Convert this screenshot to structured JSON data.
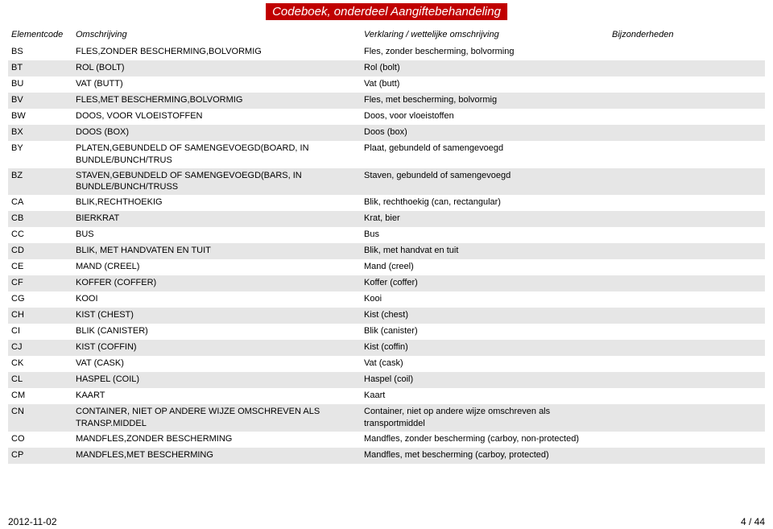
{
  "title": "Codeboek, onderdeel Aangiftebehandeling",
  "headers": {
    "code": "Elementcode",
    "desc": "Omschrijving",
    "expl": "Verklaring / wettelijke omschrijving",
    "notes": "Bijzonderheden"
  },
  "rows": [
    {
      "code": "BS",
      "desc": "FLES,ZONDER BESCHERMING,BOLVORMIG",
      "expl": "Fles, zonder bescherming, bolvorming",
      "stripe": false
    },
    {
      "code": "BT",
      "desc": "ROL (BOLT)",
      "expl": "Rol (bolt)",
      "stripe": true
    },
    {
      "code": "BU",
      "desc": "VAT (BUTT)",
      "expl": "Vat (butt)",
      "stripe": false
    },
    {
      "code": "BV",
      "desc": "FLES,MET BESCHERMING,BOLVORMIG",
      "expl": "Fles, met bescherming, bolvormig",
      "stripe": true
    },
    {
      "code": "BW",
      "desc": "DOOS, VOOR VLOEISTOFFEN",
      "expl": "Doos, voor vloeistoffen",
      "stripe": false
    },
    {
      "code": "BX",
      "desc": "DOOS (BOX)",
      "expl": "Doos (box)",
      "stripe": true
    },
    {
      "code": "BY",
      "desc": "PLATEN,GEBUNDELD OF SAMENGEVOEGD(BOARD, IN BUNDLE/BUNCH/TRUS",
      "expl": "Plaat, gebundeld of samengevoegd",
      "stripe": false
    },
    {
      "code": "BZ",
      "desc": "STAVEN,GEBUNDELD OF SAMENGEVOEGD(BARS, IN BUNDLE/BUNCH/TRUSS",
      "expl": "Staven, gebundeld of samengevoegd",
      "stripe": true
    },
    {
      "code": "CA",
      "desc": "BLIK,RECHTHOEKIG",
      "expl": "Blik, rechthoekig (can, rectangular)",
      "stripe": false
    },
    {
      "code": "CB",
      "desc": "BIERKRAT",
      "expl": "Krat, bier",
      "stripe": true
    },
    {
      "code": "CC",
      "desc": "BUS",
      "expl": "Bus",
      "stripe": false
    },
    {
      "code": "CD",
      "desc": "BLIK, MET HANDVATEN EN TUIT",
      "expl": "Blik, met handvat en tuit",
      "stripe": true
    },
    {
      "code": "CE",
      "desc": "MAND (CREEL)",
      "expl": "Mand (creel)",
      "stripe": false
    },
    {
      "code": "CF",
      "desc": "KOFFER (COFFER)",
      "expl": "Koffer (coffer)",
      "stripe": true
    },
    {
      "code": "CG",
      "desc": "KOOI",
      "expl": "Kooi",
      "stripe": false
    },
    {
      "code": "CH",
      "desc": "KIST (CHEST)",
      "expl": "Kist (chest)",
      "stripe": true
    },
    {
      "code": "CI",
      "desc": "BLIK (CANISTER)",
      "expl": "Blik (canister)",
      "stripe": false
    },
    {
      "code": "CJ",
      "desc": "KIST (COFFIN)",
      "expl": "Kist (coffin)",
      "stripe": true
    },
    {
      "code": "CK",
      "desc": "VAT (CASK)",
      "expl": "Vat (cask)",
      "stripe": false
    },
    {
      "code": "CL",
      "desc": "HASPEL (COIL)",
      "expl": "Haspel (coil)",
      "stripe": true
    },
    {
      "code": "CM",
      "desc": "KAART",
      "expl": "Kaart",
      "stripe": false
    },
    {
      "code": "CN",
      "desc": "CONTAINER, NIET OP ANDERE WIJZE OMSCHREVEN ALS TRANSP.MIDDEL",
      "expl": "Container, niet op andere wijze omschreven als transportmiddel",
      "stripe": true
    },
    {
      "code": "CO",
      "desc": "MANDFLES,ZONDER BESCHERMING",
      "expl": "Mandfles, zonder bescherming (carboy, non-protected)",
      "stripe": false
    },
    {
      "code": "CP",
      "desc": "MANDFLES,MET BESCHERMING",
      "expl": "Mandfles, met bescherming (carboy, protected)",
      "stripe": true
    }
  ],
  "footer": {
    "date": "2012-11-02",
    "page": "4 / 44"
  },
  "colors": {
    "title_bg": "#c00000",
    "stripe": "#e6e6e6",
    "text": "#000000",
    "bg": "#ffffff"
  }
}
